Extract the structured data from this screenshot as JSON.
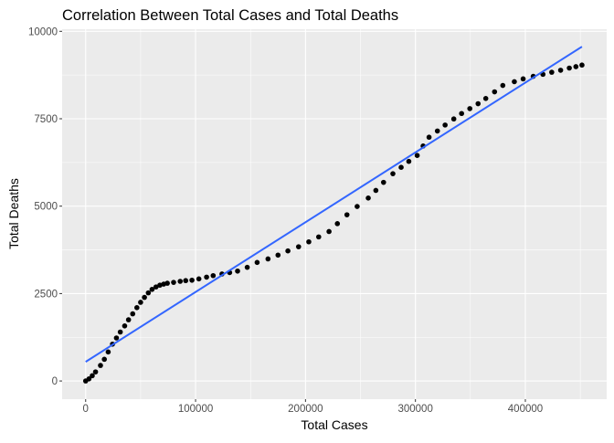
{
  "chart_data": {
    "type": "scatter",
    "title": "Correlation Between Total Cases and Total Deaths",
    "xlabel": "Total Cases",
    "ylabel": "Total Deaths",
    "xlim": [
      -21400,
      474000
    ],
    "ylim": [
      -520,
      10060
    ],
    "x_ticks": [
      0,
      100000,
      200000,
      300000,
      400000
    ],
    "x_tick_labels": [
      "0",
      "100000",
      "200000",
      "300000",
      "400000"
    ],
    "y_ticks": [
      0,
      2500,
      5000,
      7500,
      10000
    ],
    "y_tick_labels": [
      "0",
      "2500",
      "5000",
      "7500",
      "10000"
    ],
    "grid": true,
    "colors": {
      "panel": "#ebebeb",
      "grid": "#ffffff",
      "points": "#000000",
      "fit_line": "#3366ff"
    },
    "points": [
      [
        0,
        0
      ],
      [
        3000,
        60
      ],
      [
        6000,
        150
      ],
      [
        9000,
        260
      ],
      [
        13500,
        444
      ],
      [
        17000,
        620
      ],
      [
        20500,
        830
      ],
      [
        24400,
        1053
      ],
      [
        28000,
        1230
      ],
      [
        31500,
        1400
      ],
      [
        35500,
        1575
      ],
      [
        39000,
        1750
      ],
      [
        42800,
        1920
      ],
      [
        46600,
        2097
      ],
      [
        50000,
        2250
      ],
      [
        53500,
        2390
      ],
      [
        57000,
        2520
      ],
      [
        60400,
        2620
      ],
      [
        64000,
        2690
      ],
      [
        67500,
        2740
      ],
      [
        71000,
        2770
      ],
      [
        74300,
        2795
      ],
      [
        80000,
        2820
      ],
      [
        86000,
        2850
      ],
      [
        91000,
        2870
      ],
      [
        96700,
        2882
      ],
      [
        103000,
        2920
      ],
      [
        110000,
        2970
      ],
      [
        116000,
        3013
      ],
      [
        124000,
        3060
      ],
      [
        131000,
        3100
      ],
      [
        138200,
        3143
      ],
      [
        147000,
        3250
      ],
      [
        156000,
        3390
      ],
      [
        165900,
        3491
      ],
      [
        175000,
        3600
      ],
      [
        184000,
        3720
      ],
      [
        193700,
        3839
      ],
      [
        203000,
        3980
      ],
      [
        212000,
        4120
      ],
      [
        221400,
        4274
      ],
      [
        229000,
        4500
      ],
      [
        237700,
        4753
      ],
      [
        247000,
        4990
      ],
      [
        257100,
        5232
      ],
      [
        264000,
        5450
      ],
      [
        271000,
        5680
      ],
      [
        279500,
        5928
      ],
      [
        287000,
        6110
      ],
      [
        294000,
        6280
      ],
      [
        301600,
        6450
      ],
      [
        307000,
        6720
      ],
      [
        312400,
        6972
      ],
      [
        320000,
        7150
      ],
      [
        327000,
        7320
      ],
      [
        334900,
        7494
      ],
      [
        342000,
        7650
      ],
      [
        349500,
        7790
      ],
      [
        357000,
        7930
      ],
      [
        364000,
        8080
      ],
      [
        372000,
        8270
      ],
      [
        379500,
        8452
      ],
      [
        390000,
        8560
      ],
      [
        398000,
        8640
      ],
      [
        407200,
        8713
      ],
      [
        416000,
        8770
      ],
      [
        424000,
        8830
      ],
      [
        432100,
        8887
      ],
      [
        440000,
        8950
      ],
      [
        446000,
        8990
      ],
      [
        451500,
        9035
      ]
    ],
    "fit_line": {
      "x": [
        0,
        451500
      ],
      "y": [
        548,
        9561
      ]
    }
  }
}
